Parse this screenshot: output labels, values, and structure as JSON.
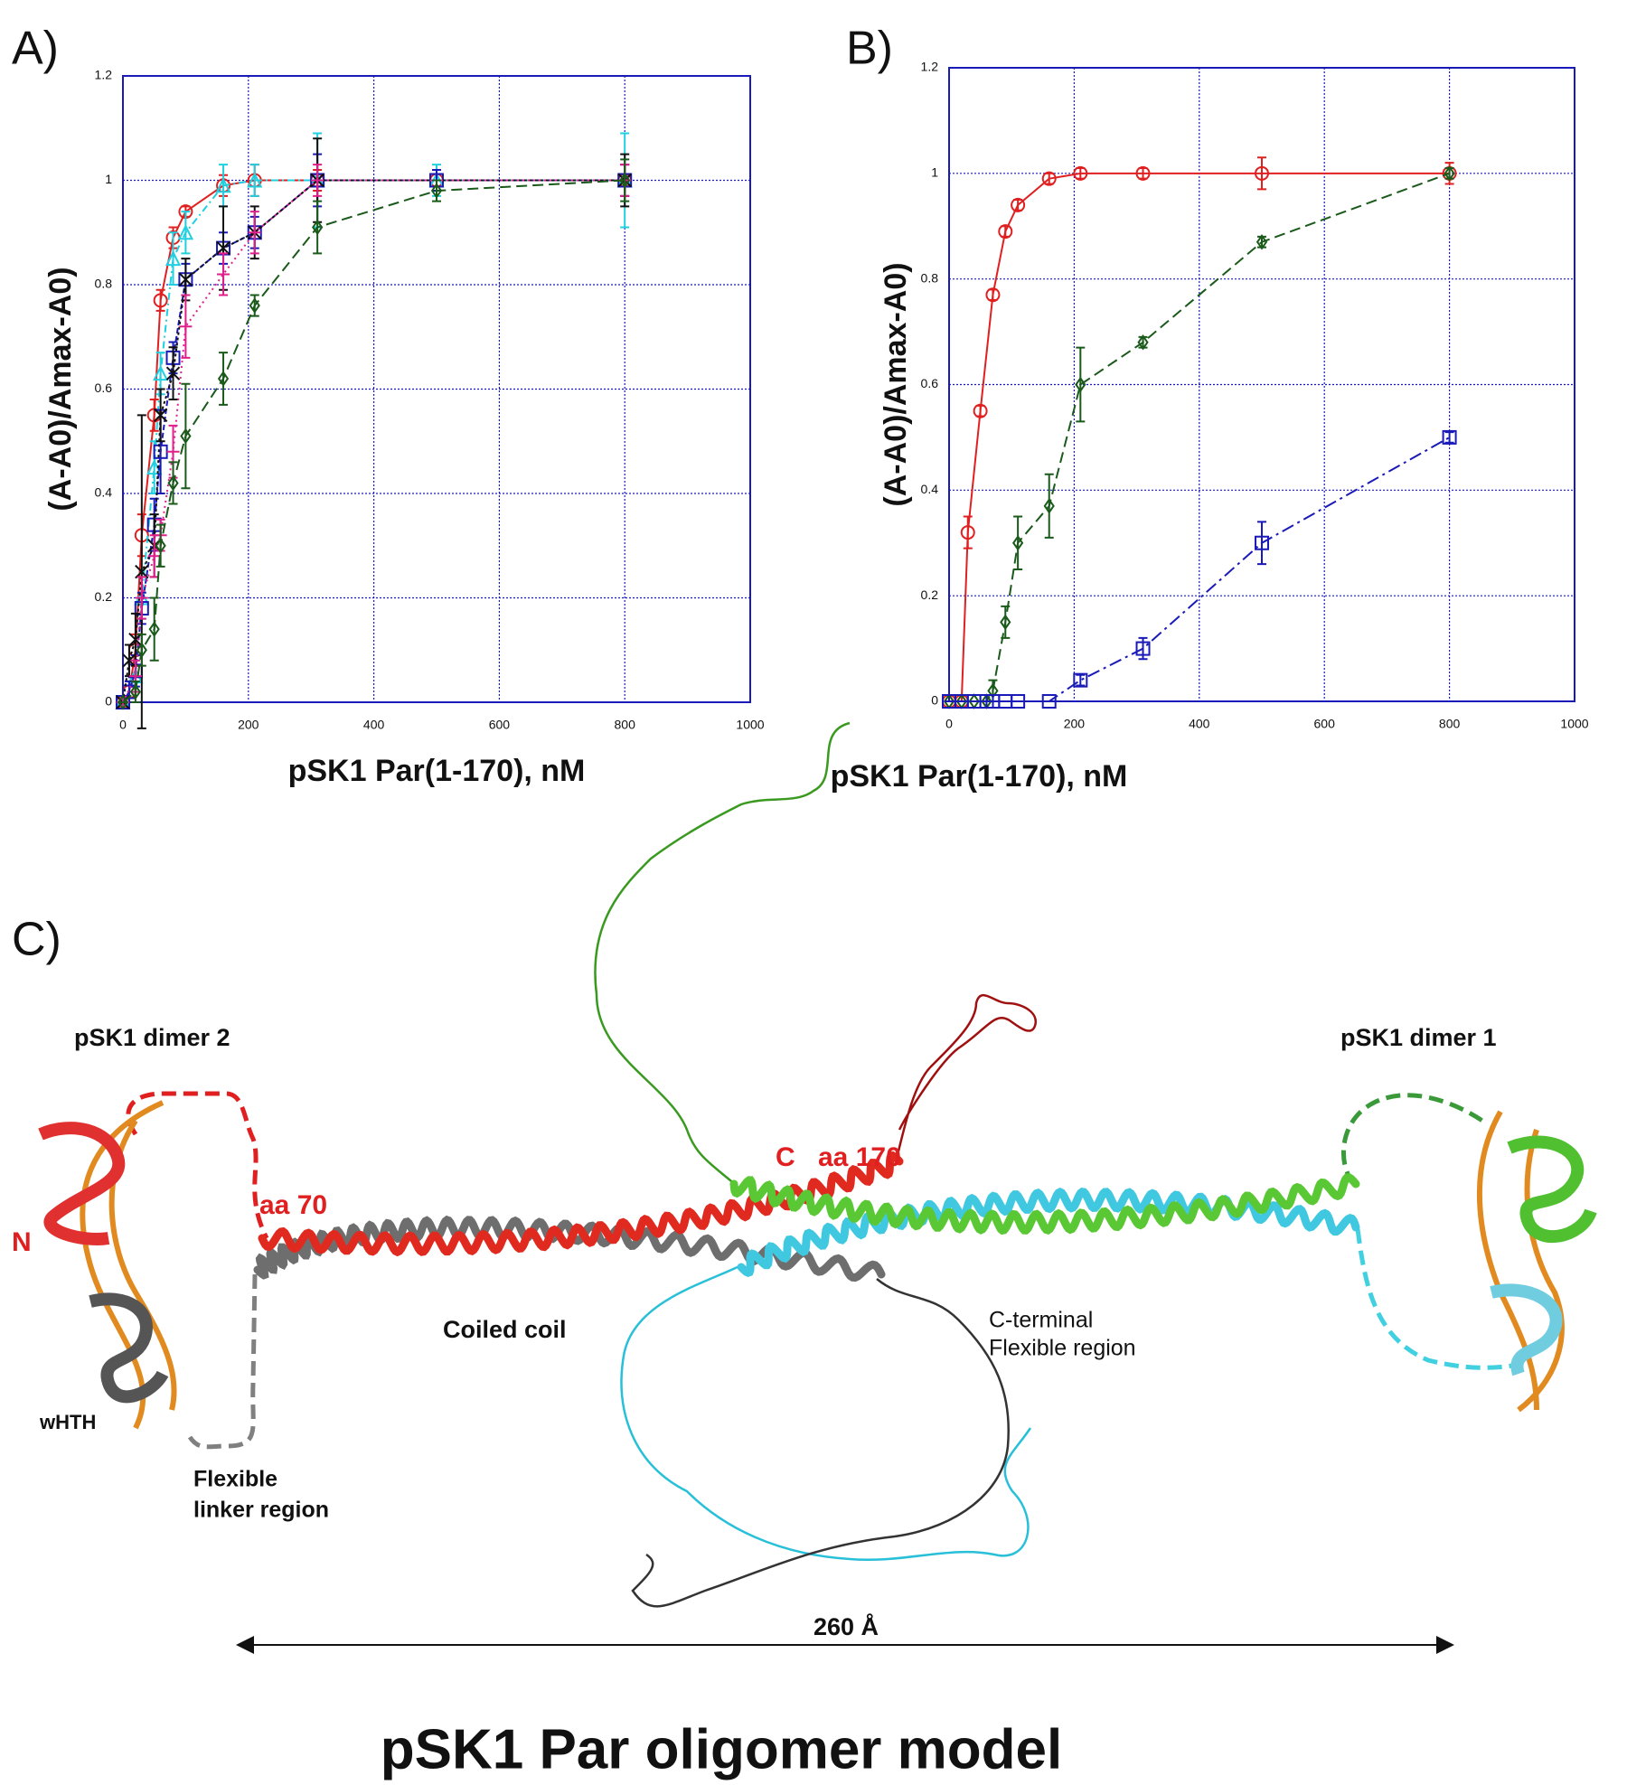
{
  "panels": [
    "A)",
    "B)",
    "C)"
  ],
  "chart_data": [
    {
      "type": "scatter",
      "ylabel": "(A-A0)/Amax-A0)",
      "xlabel": "pSK1 Par(1-170), nM",
      "xlim": [
        0,
        1000
      ],
      "xticks": [
        0,
        200,
        400,
        600,
        800,
        1000
      ],
      "ylim": [
        0,
        1.2
      ],
      "yticks": [
        0,
        0.2,
        0.4,
        0.6,
        0.8,
        1,
        1.2
      ],
      "grid": true,
      "series": [
        {
          "color": "#e02020",
          "marker": "circle",
          "dash": "solid",
          "x": [
            0,
            10,
            20,
            30,
            50,
            60,
            80,
            100,
            160,
            210,
            310,
            500,
            800
          ],
          "values": [
            0,
            0.02,
            0.1,
            0.32,
            0.55,
            0.77,
            0.89,
            0.94,
            0.99,
            1.0,
            1.0,
            1.0,
            1.0
          ],
          "errors": [
            0,
            0.02,
            0.03,
            0.04,
            0.03,
            0.02,
            0.02,
            0.01,
            0.02,
            0.03,
            0.02,
            0.02,
            0.03
          ]
        },
        {
          "color": "#20d0e0",
          "marker": "triangle",
          "dash": "8 4 2 4",
          "x": [
            0,
            20,
            30,
            50,
            60,
            80,
            100,
            160,
            210,
            310,
            500,
            800
          ],
          "values": [
            0,
            0.05,
            0.2,
            0.45,
            0.63,
            0.85,
            0.9,
            0.99,
            1.0,
            1.0,
            1.0,
            1.0
          ],
          "errors": [
            0,
            0.03,
            0.04,
            0.05,
            0.04,
            0.05,
            0.04,
            0.04,
            0.03,
            0.09,
            0.03,
            0.09
          ]
        },
        {
          "color": "#1a1ab8",
          "marker": "square",
          "dash": "6 3",
          "x": [
            0,
            10,
            20,
            30,
            50,
            60,
            80,
            100,
            160,
            210,
            310,
            500,
            800
          ],
          "values": [
            0,
            0.02,
            0.06,
            0.18,
            0.34,
            0.48,
            0.66,
            0.81,
            0.87,
            0.9,
            1.0,
            1.0,
            1.0
          ],
          "errors": [
            0,
            0.02,
            0.03,
            0.03,
            0.05,
            0.08,
            0.03,
            0.03,
            0.03,
            0.03,
            0.05,
            0.02,
            0.03
          ]
        },
        {
          "color": "#111111",
          "marker": "x",
          "dash": "3 3",
          "x": [
            0,
            10,
            20,
            30,
            50,
            60,
            80,
            100,
            160,
            210,
            310,
            800
          ],
          "values": [
            0,
            0.08,
            0.12,
            0.25,
            0.3,
            0.55,
            0.63,
            0.81,
            0.87,
            0.9,
            1.0,
            1.0
          ],
          "errors": [
            0,
            0.03,
            0.05,
            0.3,
            0.06,
            0.05,
            0.05,
            0.04,
            0.08,
            0.05,
            0.08,
            0.05
          ]
        },
        {
          "color": "#e0208a",
          "marker": "plus",
          "dash": "2 4",
          "x": [
            0,
            20,
            30,
            50,
            60,
            80,
            100,
            160,
            210,
            310,
            800
          ],
          "values": [
            0,
            0.05,
            0.2,
            0.28,
            0.32,
            0.48,
            0.72,
            0.82,
            0.9,
            1.0,
            1.0
          ],
          "errors": [
            0,
            0.03,
            0.04,
            0.04,
            0.03,
            0.05,
            0.06,
            0.04,
            0.04,
            0.03,
            0.03
          ]
        },
        {
          "color": "#1a5a1a",
          "marker": "diamond",
          "dash": "12 6",
          "x": [
            0,
            20,
            30,
            50,
            60,
            80,
            100,
            160,
            210,
            310,
            500,
            800
          ],
          "values": [
            0,
            0.02,
            0.1,
            0.14,
            0.3,
            0.42,
            0.51,
            0.62,
            0.76,
            0.91,
            0.98,
            1.0
          ],
          "errors": [
            0,
            0.02,
            0.03,
            0.06,
            0.04,
            0.04,
            0.1,
            0.05,
            0.02,
            0.05,
            0.02,
            0.04
          ]
        }
      ]
    },
    {
      "type": "scatter",
      "ylabel": "(A-A0)/Amax-A0)",
      "xlabel": "pSK1 Par(1-170), nM",
      "xlim": [
        0,
        1000
      ],
      "xticks": [
        0,
        200,
        400,
        600,
        800,
        1000
      ],
      "ylim": [
        0,
        1.2
      ],
      "yticks": [
        0,
        0.2,
        0.4,
        0.6,
        0.8,
        1,
        1.2
      ],
      "grid": true,
      "series": [
        {
          "color": "#e02020",
          "marker": "circle",
          "dash": "solid",
          "x": [
            0,
            20,
            30,
            50,
            70,
            90,
            110,
            160,
            210,
            310,
            500,
            800
          ],
          "values": [
            0,
            0,
            0.32,
            0.55,
            0.77,
            0.89,
            0.94,
            0.99,
            1.0,
            1.0,
            1.0,
            1.0
          ],
          "errors": [
            0,
            0,
            0.03,
            0.01,
            0.01,
            0.01,
            0.01,
            0.01,
            0.01,
            0.01,
            0.03,
            0.02
          ]
        },
        {
          "color": "#1a5a1a",
          "marker": "diamond",
          "dash": "12 6",
          "x": [
            0,
            20,
            40,
            60,
            70,
            90,
            110,
            160,
            210,
            310,
            500,
            800
          ],
          "values": [
            0,
            0,
            0,
            0,
            0.02,
            0.15,
            0.3,
            0.37,
            0.6,
            0.68,
            0.87,
            1.0
          ],
          "errors": [
            0,
            0,
            0,
            0,
            0.02,
            0.03,
            0.05,
            0.06,
            0.07,
            0.01,
            0.01,
            0.01
          ]
        },
        {
          "color": "#1a1ab8",
          "marker": "square",
          "dash": "14 5 3 5",
          "x": [
            0,
            20,
            40,
            60,
            70,
            90,
            110,
            160,
            210,
            310,
            500,
            800
          ],
          "values": [
            0,
            0,
            0,
            0,
            0,
            0,
            0,
            0,
            0.04,
            0.1,
            0.3,
            0.5
          ],
          "errors": [
            0,
            0,
            0,
            0,
            0,
            0,
            0,
            0,
            0.01,
            0.02,
            0.04,
            0.01
          ]
        }
      ]
    }
  ],
  "diagram": {
    "title": "pSK1 Par oligomer model",
    "dimer2": "pSK1 dimer 2",
    "dimer1": "pSK1 dimer 1",
    "n_term": "N",
    "aa70": "aa 70",
    "c_term": "C",
    "aa170": "aa 170",
    "coiled": "Coiled coil",
    "cflex1": "C-terminal",
    "cflex2": "Flexible region",
    "whth": "wHTH",
    "linker1": "Flexible",
    "linker2": "linker region",
    "length": "260 Å"
  }
}
